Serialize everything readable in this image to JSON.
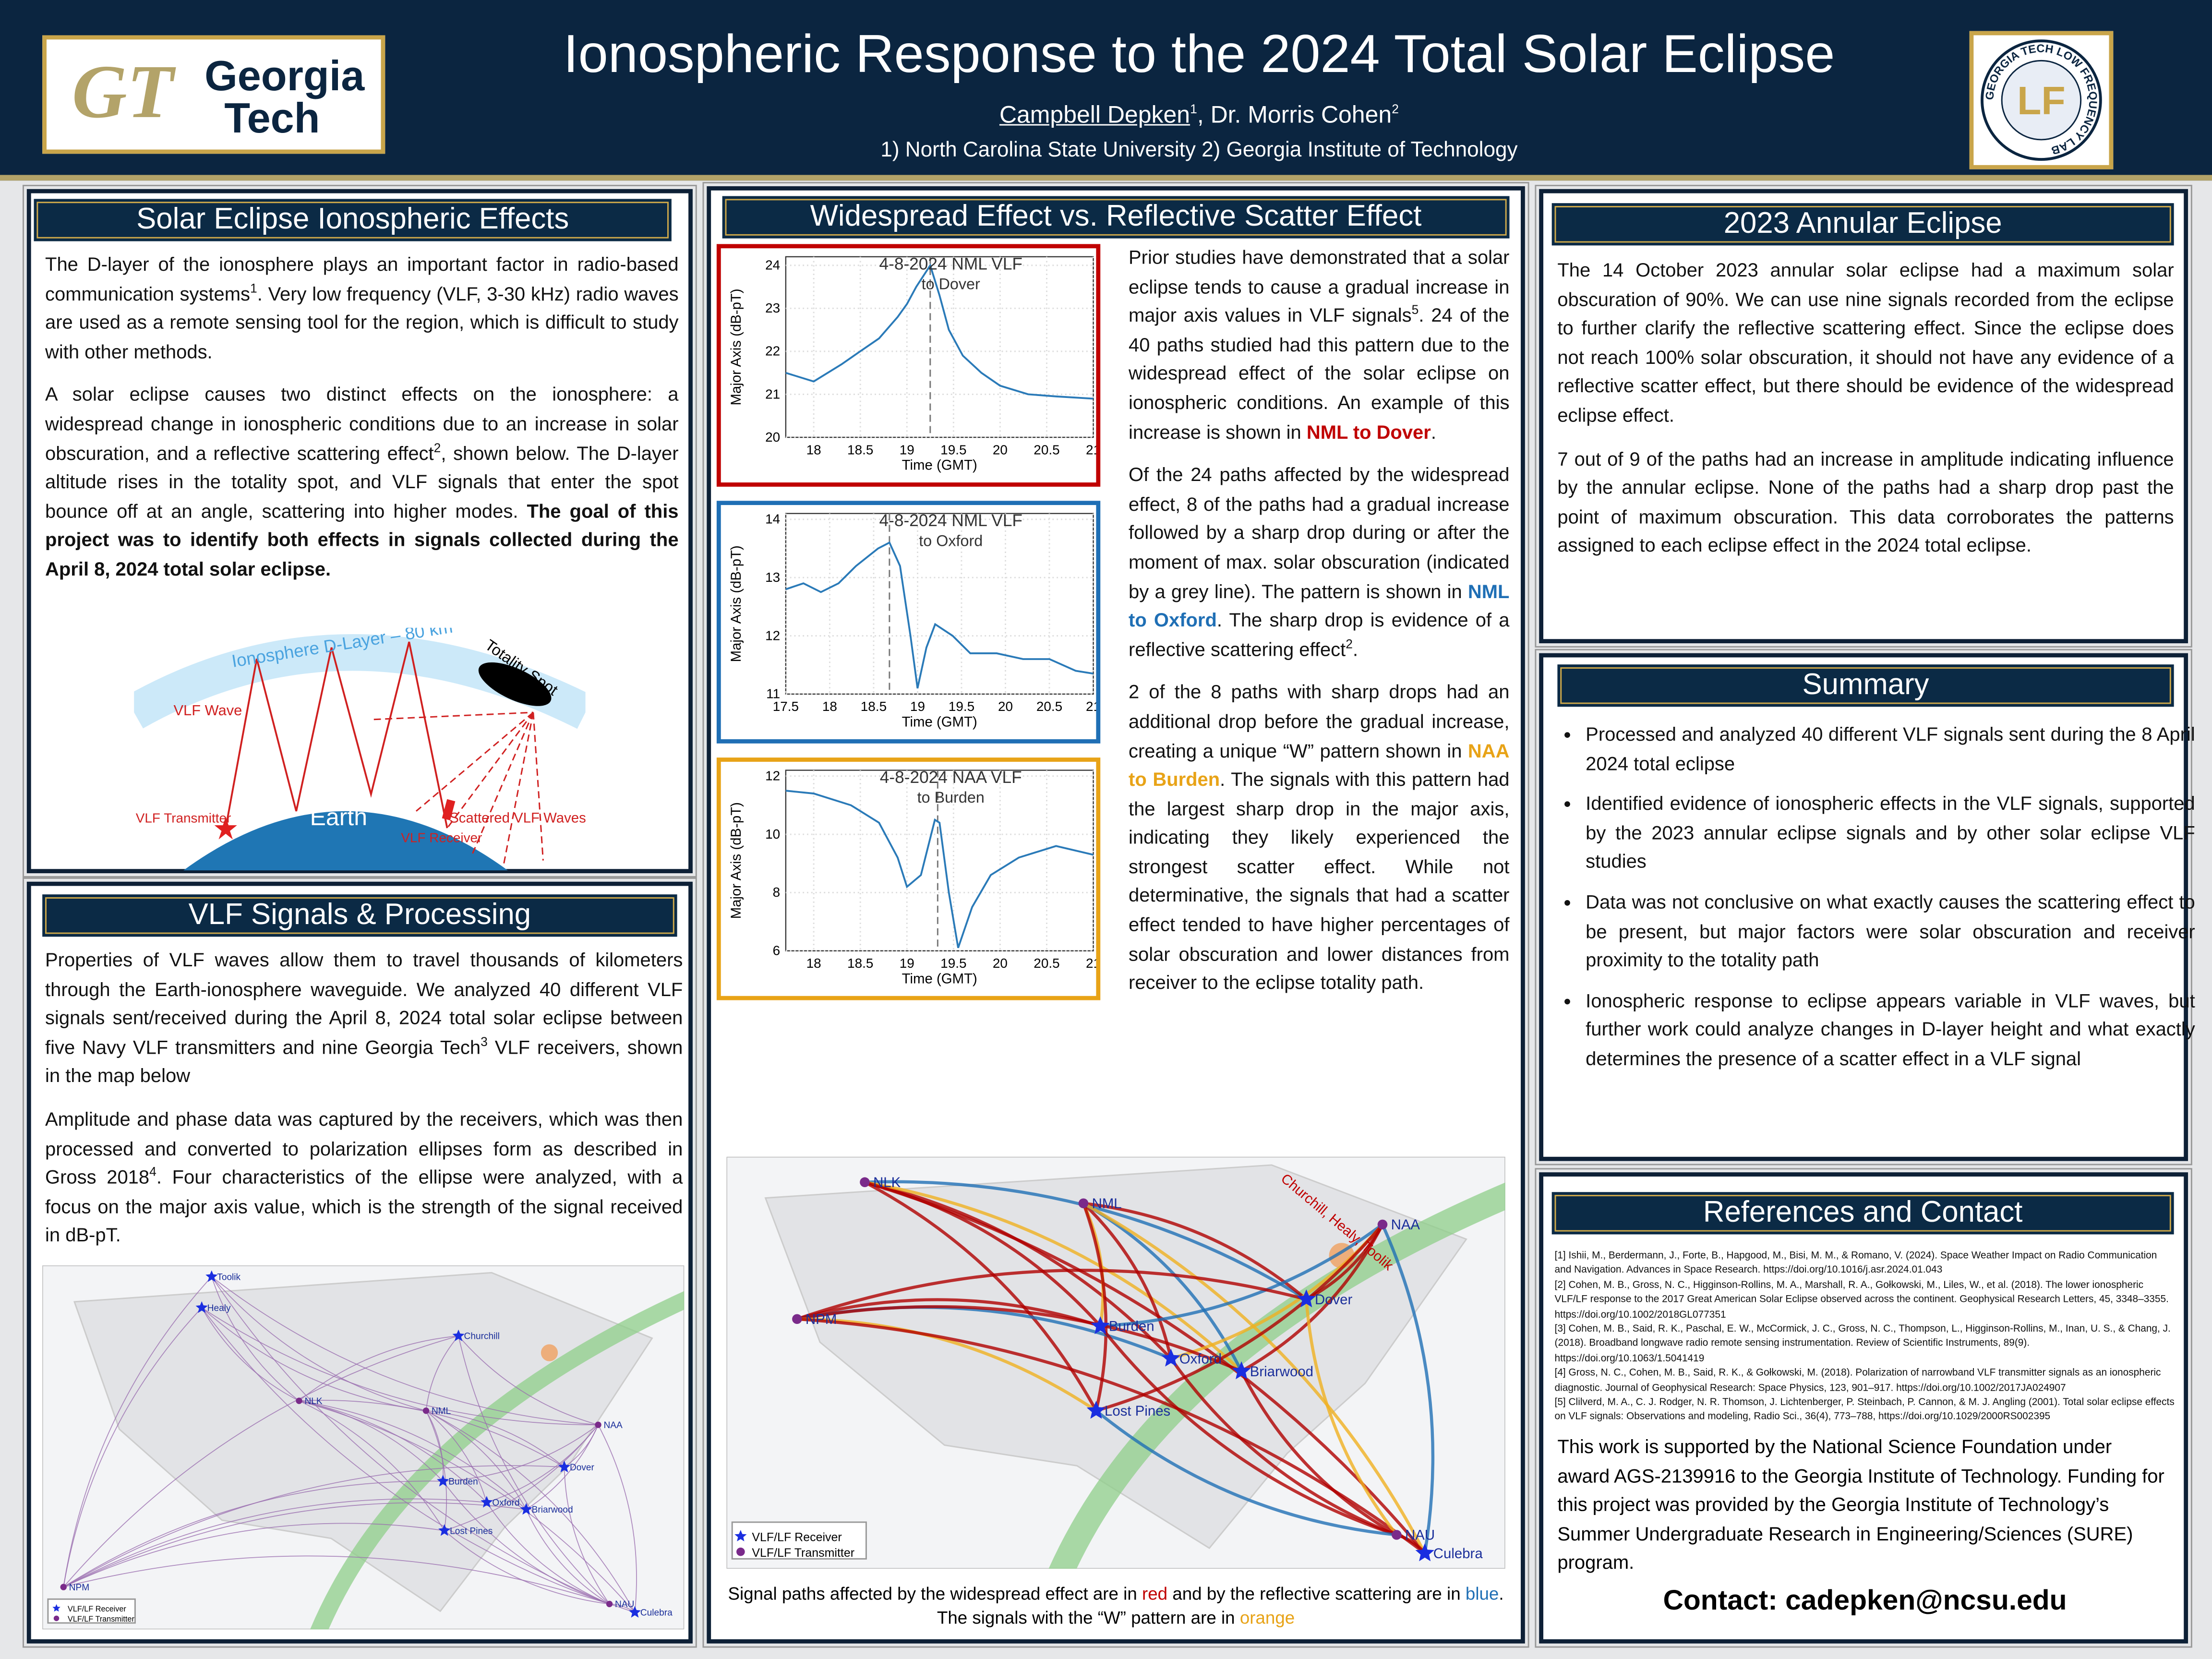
{
  "header": {
    "title": "Ionospheric Response to the 2024 Total Solar Eclipse",
    "authors": [
      {
        "text": "Campbell Depken",
        "underline": true
      },
      {
        "text": "1",
        "sup": true
      },
      {
        "text": ", Dr. Morris Cohen"
      },
      {
        "text": "2",
        "sup": true
      }
    ],
    "affiliations": "1) North Carolina State University 2) Georgia Institute of Technology",
    "logo_left": {
      "mark": "GT",
      "line1": "Georgia",
      "line2": "Tech"
    },
    "logo_right": {
      "ring": "GEORGIA TECH LOW FREQUENCY LAB",
      "mark": "LF"
    }
  },
  "eclipse_effects": {
    "heading": "Solar Eclipse Ionospheric Effects",
    "paragraphs": [
      [
        {
          "text": "The D-layer of the ionosphere plays an important factor in radio-based communication systems"
        },
        {
          "text": "1",
          "sup": true
        },
        {
          "text": ". Very low frequency (VLF, 3-30 kHz) radio waves are used as a remote sensing tool for the region, which is difficult to study with other methods."
        }
      ],
      [
        {
          "text": "A solar eclipse causes two distinct effects on the ionosphere: a widespread change in ionospheric conditions due to an increase in solar obscuration, and a reflective scattering effect"
        },
        {
          "text": "2",
          "sup": true
        },
        {
          "text": ", shown below. The D-layer altitude rises in the totality spot, and VLF signals that enter the spot bounce off at an angle, scattering into higher modes. "
        },
        {
          "text": "The goal of this project was to identify both effects in signals collected during the April 8, 2024 total solar eclipse.",
          "bold": true
        }
      ]
    ],
    "diagram": {
      "ionosphere": "Ionosphere D-Layer – 80 km",
      "spot": "Totality Spot",
      "wave": "VLF Wave",
      "earth": "Earth",
      "transmitter": "VLF Transmitter",
      "receiver": "VLF Receiver",
      "scattered": "Scattered VLF Waves"
    }
  },
  "vlf_processing": {
    "heading": "VLF Signals & Processing",
    "paragraphs": [
      [
        {
          "text": "Properties of VLF waves allow them to travel thousands of kilometers through the Earth-ionosphere waveguide. We analyzed 40 different VLF signals sent/received during the April 8, 2024 total solar eclipse between five Navy VLF transmitters and nine Georgia Tech"
        },
        {
          "text": "3",
          "sup": true
        },
        {
          "text": " VLF receivers, shown in the map below"
        }
      ],
      [
        {
          "text": "Amplitude and phase data was captured by the receivers, which was then processed and converted to polarization ellipses form as described in Gross 2018"
        },
        {
          "text": "4",
          "sup": true
        },
        {
          "text": ". Four characteristics of the ellipse were analyzed, with a focus on the major axis value, which is the strength of the signal received in dB-pT."
        }
      ]
    ],
    "map": {
      "labels": [
        "Toolik",
        "Healy",
        "Churchill",
        "NLK",
        "NML",
        "NAA",
        "Dover",
        "Burden",
        "Oxford",
        "Briarwood",
        "Lost Pines",
        "NPM",
        "NAU",
        "Culebra"
      ],
      "legend": [
        "VLF/LF Receiver",
        "VLF/LF Transmitter"
      ]
    }
  },
  "widespread_vs_scatter": {
    "heading": "Widespread Effect vs. Reflective Scatter Effect",
    "paragraphs": [
      [
        {
          "text": "Prior studies have demonstrated that a solar eclipse tends to cause a gradual increase in major axis values in VLF signals"
        },
        {
          "text": "5",
          "sup": true
        },
        {
          "text": ". 24 of the 40 paths studied had this pattern due to the widespread effect of the solar eclipse on ionospheric conditions. An example of this increase is shown in "
        },
        {
          "text": "NML to Dover",
          "bold": true,
          "color": "#c00000"
        },
        {
          "text": "."
        }
      ],
      [
        {
          "text": "Of the 24 paths affected by the widespread effect, 8 of the paths had a gradual increase followed by a sharp drop during or after the moment of max. solar obscuration (indicated by a grey line). The pattern is shown in "
        },
        {
          "text": "NML to Oxford",
          "bold": true,
          "color": "#1f6fb5"
        },
        {
          "text": ". The sharp drop is evidence of a reflective scattering effect"
        },
        {
          "text": "2",
          "sup": true
        },
        {
          "text": "."
        }
      ],
      [
        {
          "text": "2 of the 8 paths with sharp drops had an additional drop before the gradual increase, creating a unique “W” pattern shown in "
        },
        {
          "text": "NAA to Burden",
          "bold": true,
          "color": "#e8a317"
        },
        {
          "text": ". The signals with this pattern had the largest sharp drop in the major axis, indicating they likely experienced the strongest scatter effect. While not determinative, the signals that had a scatter effect tended to have higher percentages of solar obscuration and lower distances from receiver to the eclipse totality path."
        }
      ]
    ],
    "map": {
      "labels": [
        "NLK",
        "NML",
        "NAA",
        "NPM",
        "Churchill, Healy, Toolik",
        "Burden",
        "Dover",
        "Oxford",
        "Briarwood",
        "Lost Pines",
        "NAU",
        "Culebra"
      ],
      "legend": [
        "VLF/LF Receiver",
        "VLF/LF Transmitter"
      ]
    },
    "caption": [
      {
        "text": "Signal paths affected by the widespread effect are in "
      },
      {
        "text": "red",
        "color": "#c00000"
      },
      {
        "text": " and by the reflective scattering are in "
      },
      {
        "text": "blue",
        "color": "#1f6fb5"
      },
      {
        "text": ". The signals with the “W” pattern are in "
      },
      {
        "text": "orange",
        "color": "#e8a317"
      }
    ]
  },
  "chart_data": [
    {
      "type": "line",
      "title": "4-8-2024 NML VLF",
      "subtitle": "to Dover",
      "x_label": "Time (GMT)",
      "y_label": "Major Axis (dB-pT)",
      "frame_color": "#c00000",
      "color": "#2a7ab8",
      "grid": true,
      "x": [
        17.7,
        18,
        18.3,
        18.5,
        18.7,
        18.9,
        19,
        19.1,
        19.25,
        19.35,
        19.45,
        19.6,
        19.8,
        20,
        20.3,
        20.6,
        21
      ],
      "values": [
        21.5,
        21.3,
        21.7,
        22,
        22.3,
        22.8,
        23.1,
        23.5,
        24,
        23.3,
        22.5,
        21.9,
        21.5,
        21.2,
        21,
        20.95,
        20.9
      ],
      "max_obscuration_x": 19.25,
      "xlim": [
        17.7,
        21
      ],
      "ylim": [
        20,
        24.2
      ],
      "xticks": [
        18,
        18.5,
        19,
        19.5,
        20,
        20.5,
        21
      ],
      "yticks": [
        20,
        21,
        22,
        23,
        24
      ]
    },
    {
      "type": "line",
      "title": "4-8-2024 NML VLF",
      "subtitle": "to Oxford",
      "x_label": "Time (GMT)",
      "y_label": "Major Axis (dB-pT)",
      "frame_color": "#1f6fb5",
      "color": "#2a7ab8",
      "grid": true,
      "x": [
        17.5,
        17.7,
        17.9,
        18.1,
        18.3,
        18.55,
        18.68,
        18.8,
        18.92,
        19,
        19.1,
        19.2,
        19.4,
        19.6,
        19.9,
        20.2,
        20.5,
        20.8,
        21
      ],
      "values": [
        12.8,
        12.9,
        12.75,
        12.9,
        13.2,
        13.5,
        13.6,
        13.2,
        12,
        11.1,
        11.8,
        12.2,
        12,
        11.7,
        11.7,
        11.6,
        11.6,
        11.4,
        11.35
      ],
      "max_obscuration_x": 18.68,
      "xlim": [
        17.5,
        21
      ],
      "ylim": [
        11,
        14.1
      ],
      "xticks": [
        17.5,
        18,
        18.5,
        19,
        19.5,
        20,
        20.5,
        21
      ],
      "yticks": [
        11,
        12,
        13,
        14
      ]
    },
    {
      "type": "line",
      "title": "4-8-2024 NAA VLF",
      "subtitle": "to Burden",
      "x_label": "Time (GMT)",
      "y_label": "Major Axis (dB-pT)",
      "frame_color": "#e8a317",
      "color": "#2a7ab8",
      "grid": true,
      "x": [
        17.7,
        18,
        18.4,
        18.7,
        18.9,
        19,
        19.15,
        19.3,
        19.35,
        19.45,
        19.55,
        19.7,
        19.9,
        20.2,
        20.6,
        21
      ],
      "values": [
        11.5,
        11.4,
        11,
        10.4,
        9.2,
        8.2,
        8.6,
        10.5,
        10.4,
        8,
        6.1,
        7.5,
        8.6,
        9.2,
        9.6,
        9.3
      ],
      "max_obscuration_x": 19.33,
      "xlim": [
        17.7,
        21
      ],
      "ylim": [
        6,
        12.2
      ],
      "xticks": [
        18,
        18.5,
        19,
        19.5,
        20,
        20.5,
        21
      ],
      "yticks": [
        6,
        8,
        10,
        12
      ]
    }
  ],
  "annular_2023": {
    "heading": "2023 Annular Eclipse",
    "paragraphs": [
      [
        {
          "text": "The 14 October 2023 annular solar eclipse had a maximum solar obscuration of 90%. We can use nine signals recorded from the eclipse to further clarify the reflective scattering effect. Since the eclipse does not reach 100% solar obscuration, it should not have any evidence of a reflective scatter effect, but there should be evidence of the widespread eclipse effect."
        }
      ],
      [
        {
          "text": "7 out of 9 of the paths had an increase in amplitude indicating influence by the annular eclipse. None of the paths had a sharp drop past the point of maximum obscuration. This data corroborates the patterns assigned to each eclipse effect in the 2024 total eclipse."
        }
      ]
    ]
  },
  "summary": {
    "heading": "Summary",
    "bullets": [
      "Processed and analyzed 40 different VLF signals sent during the 8 April 2024 total eclipse",
      "Identified evidence of ionospheric effects in the VLF signals, supported by the 2023 annular eclipse signals and by other solar eclipse VLF studies",
      "Data was not conclusive on what exactly causes the scattering effect to be present, but major factors were solar obscuration and receiver proximity to the totality path",
      "Ionospheric response to eclipse appears variable in VLF waves, but further work could analyze changes in D-layer height and what exactly determines the presence of a scatter effect in a VLF signal"
    ]
  },
  "references": {
    "heading": "References and Contact",
    "items": [
      "[1] Ishii, M., Berdermann, J., Forte, B., Hapgood, M., Bisi, M. M., & Romano, V. (2024). Space Weather Impact on Radio Communication and Navigation. Advances in Space Research. https://doi.org/10.1016/j.asr.2024.01.043",
      "[2] Cohen, M. B., Gross, N. C., Higginson-Rollins, M. A., Marshall, R. A., Gołkowski, M., Liles, W., et al. (2018). The lower ionospheric VLF/LF response to the 2017 Great American Solar Eclipse observed across the continent. Geophysical Research Letters, 45, 3348–3355. https://doi.org/10.1002/2018GL077351",
      "[3] Cohen, M. B., Said, R. K., Paschal, E. W., McCormick, J. C., Gross, N. C., Thompson, L., Higginson-Rollins, M., Inan, U. S., & Chang, J. (2018). Broadband longwave radio remote sensing instrumentation. Review of Scientific Instruments, 89(9). https://doi.org/10.1063/1.5041419",
      "[4] Gross, N. C., Cohen, M. B., Said, R. K., & Gołkowski, M. (2018). Polarization of narrowband VLF transmitter signals as an ionospheric diagnostic. Journal of Geophysical Research: Space Physics, 123, 901–917. https://doi.org/10.1002/2017JA024907",
      "[5] Clilverd, M. A., C. J. Rodger, N. R. Thomson, J. Lichtenberger, P. Steinbach, P. Cannon, & M. J. Angling (2001). Total solar eclipse effects on VLF signals: Observations and modeling, Radio Sci., 36(4), 773–788, https://doi.org/10.1029/2000RS002395"
    ],
    "support": "This work is supported by the National Science Foundation under award AGS-2139916 to the Georgia Institute of Technology.  Funding for this project was provided by the Georgia Institute of Technology’s Summer Undergraduate Research in Engineering/Sciences (SURE) program.",
    "contact": "Contact: cadepken@ncsu.edu"
  }
}
